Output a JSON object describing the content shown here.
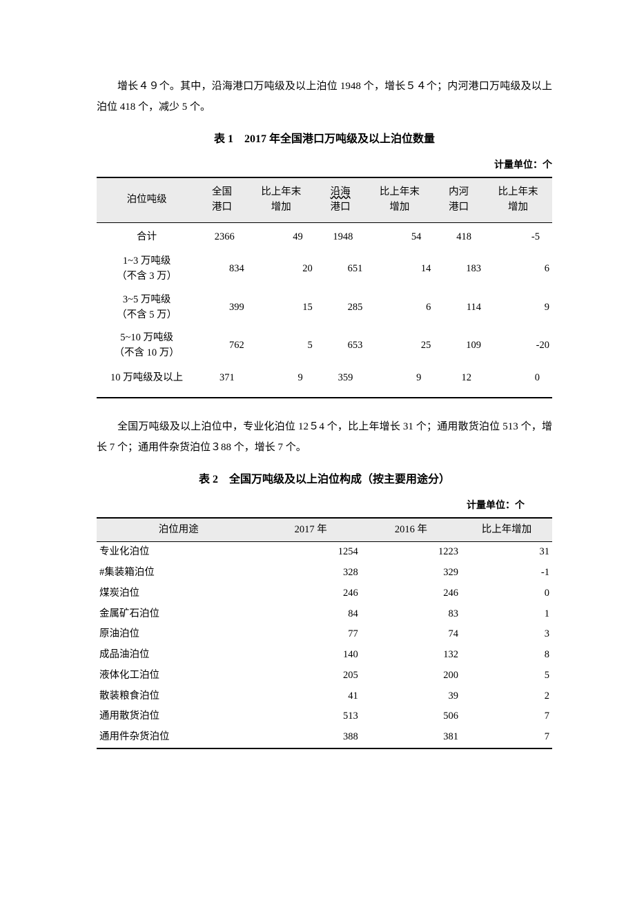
{
  "intro_para": "增长４９个。其中，沿海港口万吨级及以上泊位 1948 个，增长５４个；内河港口万吨级及以上泊位 418 个，减少 5 个。",
  "table1": {
    "title": "表 1　2017 年全国港口万吨级及以上泊位数量",
    "unit": "计量单位：个",
    "headers": [
      "泊位吨级",
      "全国港口",
      "比上年末增加",
      "沿海港口",
      "比上年末增加",
      "内河港口",
      "比上年末增加"
    ],
    "rows": [
      {
        "label": "合计",
        "quanguo": "2366",
        "q_inc": "49",
        "yanhai": "1948",
        "y_inc": "54",
        "neihe": "418",
        "n_inc": "-5",
        "multiline": false
      },
      {
        "label": "1~3 万吨级（不含 3 万）",
        "quanguo": "834",
        "q_inc": "20",
        "yanhai": "651",
        "y_inc": "14",
        "neihe": "183",
        "n_inc": "6",
        "multiline": true
      },
      {
        "label": "3~5 万吨级（不含 5 万）",
        "quanguo": "399",
        "q_inc": "15",
        "yanhai": "285",
        "y_inc": "6",
        "neihe": "114",
        "n_inc": "9",
        "multiline": true
      },
      {
        "label": "5~10 万吨级（不含 10 万）",
        "quanguo": "762",
        "q_inc": "5",
        "yanhai": "653",
        "y_inc": "25",
        "neihe": "109",
        "n_inc": "-20",
        "multiline": true
      },
      {
        "label": "10 万吨级及以上",
        "quanguo": "371",
        "q_inc": "9",
        "yanhai": "359",
        "y_inc": "9",
        "neihe": "12",
        "n_inc": "0",
        "multiline": false
      }
    ]
  },
  "mid_para": "全国万吨级及以上泊位中，专业化泊位 12５4 个，比上年增长 31 个；通用散货泊位 513 个，增长 7 个；通用件杂货泊位３88 个，增长 7 个。",
  "table2": {
    "title": "表 2　全国万吨级及以上泊位构成（按主要用途分）",
    "unit": "计量单位：个",
    "headers": [
      "泊位用途",
      "2017 年",
      "2016 年",
      "比上年增加"
    ],
    "rows": [
      {
        "label": "专业化泊位",
        "y2017": "1254",
        "y2016": "1223",
        "inc": "31",
        "indent": 0
      },
      {
        "label": "#集装箱泊位",
        "y2017": "328",
        "y2016": "329",
        "inc": "-1",
        "indent": 1
      },
      {
        "label": "煤炭泊位",
        "y2017": "246",
        "y2016": "246",
        "inc": "0",
        "indent": 1
      },
      {
        "label": "金属矿石泊位",
        "y2017": "84",
        "y2016": "83",
        "inc": "1",
        "indent": 1
      },
      {
        "label": "原油泊位",
        "y2017": "77",
        "y2016": "74",
        "inc": "3",
        "indent": 1
      },
      {
        "label": "成品油泊位",
        "y2017": "140",
        "y2016": "132",
        "inc": "8",
        "indent": 1
      },
      {
        "label": "液体化工泊位",
        "y2017": "205",
        "y2016": "200",
        "inc": "5",
        "indent": 1
      },
      {
        "label": "散装粮食泊位",
        "y2017": "41",
        "y2016": "39",
        "inc": "2",
        "indent": 1
      },
      {
        "label": "通用散货泊位",
        "y2017": "513",
        "y2016": "506",
        "inc": "7",
        "indent": 0
      },
      {
        "label": "通用件杂货泊位",
        "y2017": "388",
        "y2016": "381",
        "inc": "7",
        "indent": 0
      }
    ]
  }
}
